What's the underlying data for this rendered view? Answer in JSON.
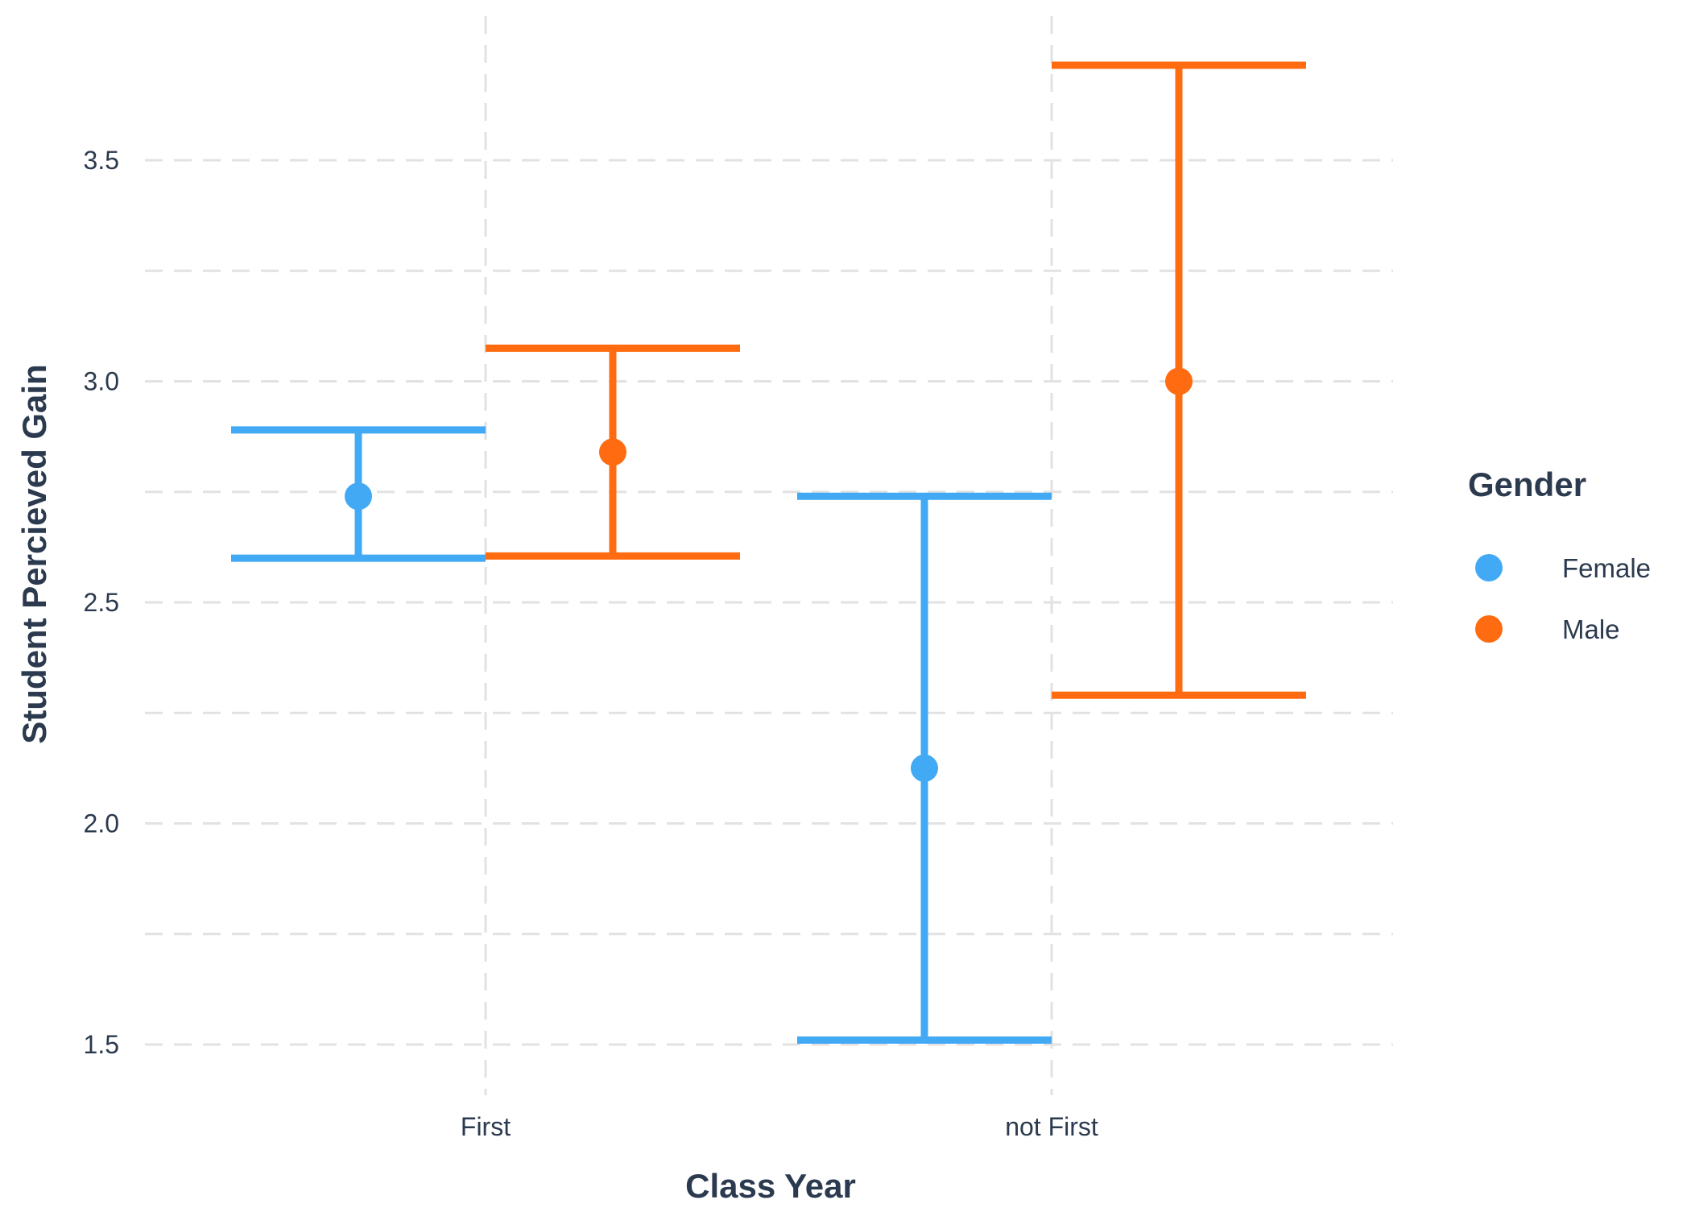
{
  "chart_data": {
    "type": "errorbar",
    "title": "",
    "xlabel": "Class Year",
    "ylabel": "Student Percieved Gain",
    "categories": [
      "First",
      "not First"
    ],
    "ylim": [
      1.4,
      3.75
    ],
    "yticks": [
      "1.5",
      "2.0",
      "2.5",
      "3.0",
      "3.5"
    ],
    "grid": "dashed major and minor",
    "legend": {
      "title": "Gender",
      "placement": "right"
    },
    "series": [
      {
        "name": "Female",
        "color": "#42a9f5",
        "points": [
          {
            "category": "First",
            "mean": 2.74,
            "lower": 2.6,
            "upper": 2.89
          },
          {
            "category": "not First",
            "mean": 2.125,
            "lower": 1.51,
            "upper": 2.74
          }
        ]
      },
      {
        "name": "Male",
        "color": "#ff6b10",
        "points": [
          {
            "category": "First",
            "mean": 2.84,
            "lower": 2.605,
            "upper": 3.075
          },
          {
            "category": "not First",
            "mean": 3.0,
            "lower": 2.29,
            "upper": 3.715
          }
        ]
      }
    ]
  }
}
